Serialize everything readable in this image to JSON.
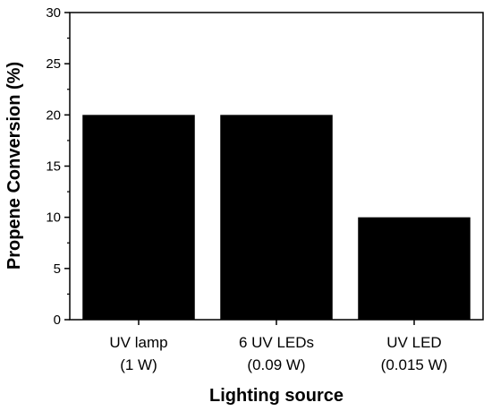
{
  "chart_data": {
    "type": "bar",
    "categories": [
      [
        "UV lamp",
        "(1 W)"
      ],
      [
        "6 UV LEDs",
        "(0.09 W)"
      ],
      [
        "UV LED",
        "(0.015 W)"
      ]
    ],
    "values": [
      20,
      20,
      10
    ],
    "title": "",
    "xlabel": "Lighting source",
    "ylabel": "Propene Conversion (%)",
    "ylim": [
      0,
      30
    ],
    "yticks": [
      0,
      5,
      10,
      15,
      20,
      25,
      30
    ],
    "grid": false,
    "bar_color": "#000000"
  }
}
